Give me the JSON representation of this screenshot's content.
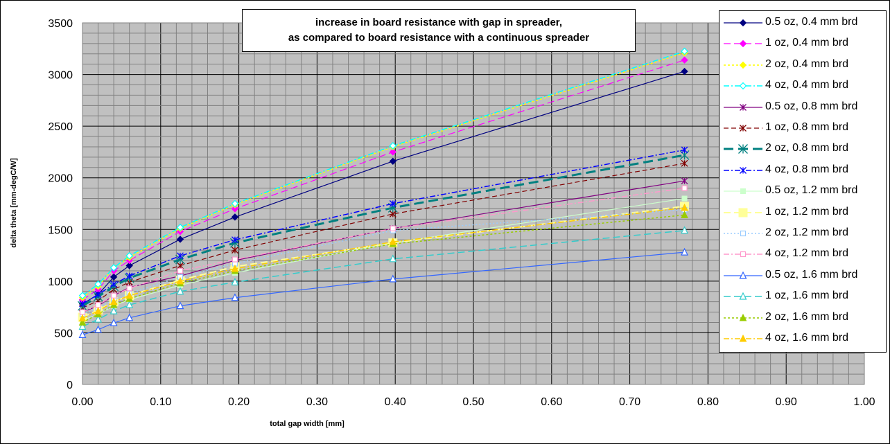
{
  "chart_data": {
    "type": "line",
    "title_lines": [
      "increase in board resistance with gap in spreader,",
      "as compared to board resistance with a continuous spreader"
    ],
    "xlabel": "total gap width [mm]",
    "ylabel": "delta theta [mm-degC/W]",
    "xlim": [
      0,
      1
    ],
    "ylim": [
      0,
      3500
    ],
    "x_ticks": [
      "0.00",
      "0.10",
      "0.20",
      "0.30",
      "0.40",
      "0.50",
      "0.60",
      "0.70",
      "0.80",
      "0.90",
      "1.00"
    ],
    "y_ticks": [
      "0",
      "500",
      "1000",
      "1500",
      "2000",
      "2500",
      "3000",
      "3500"
    ],
    "grid": true,
    "legend_position": "right",
    "x": [
      0,
      0.02,
      0.04,
      0.06,
      0.125,
      0.195,
      0.397,
      0.77
    ],
    "series": [
      {
        "name": "0.5 oz, 0.4 mm brd",
        "color": "#000080",
        "dash": "",
        "marker": "diamond",
        "width": 1.2,
        "values": [
          780,
          870,
          1040,
          1150,
          1405,
          1620,
          2160,
          3030
        ]
      },
      {
        "name": "1 oz, 0.4 mm brd",
        "color": "#ff00ff",
        "dash": "10,5",
        "marker": "diamond",
        "width": 1.2,
        "values": [
          820,
          920,
          1100,
          1200,
          1480,
          1700,
          2250,
          3140
        ]
      },
      {
        "name": "2 oz, 0.4 mm brd",
        "color": "#ffff00",
        "dash": "3,3",
        "marker": "diamond",
        "width": 1.5,
        "values": [
          840,
          950,
          1130,
          1230,
          1510,
          1740,
          2300,
          3210
        ]
      },
      {
        "name": "4 oz, 0.4 mm brd",
        "color": "#00ffff",
        "dash": "8,3,2,3",
        "marker": "diamond-open",
        "width": 1.5,
        "values": [
          860,
          970,
          1130,
          1245,
          1520,
          1750,
          2310,
          3225
        ]
      },
      {
        "name": "0.5 oz, 0.8 mm brd",
        "color": "#800080",
        "dash": "",
        "marker": "star",
        "width": 1.2,
        "values": [
          700,
          760,
          860,
          940,
          1050,
          1200,
          1510,
          1970
        ]
      },
      {
        "name": "1 oz, 0.8 mm brd",
        "color": "#800000",
        "dash": "7,4",
        "marker": "star",
        "width": 1.2,
        "values": [
          740,
          810,
          920,
          990,
          1150,
          1300,
          1650,
          2140
        ]
      },
      {
        "name": "2 oz, 0.8 mm brd",
        "color": "#008080",
        "dash": "14,7",
        "marker": "star-large",
        "width": 3,
        "values": [
          760,
          850,
          950,
          1030,
          1210,
          1370,
          1710,
          2220
        ]
      },
      {
        "name": "4 oz, 0.8 mm brd",
        "color": "#0000ff",
        "dash": "8,3,2,3",
        "marker": "star",
        "width": 1.5,
        "values": [
          780,
          870,
          970,
          1050,
          1245,
          1400,
          1750,
          2270
        ]
      },
      {
        "name": "0.5 oz, 1.2 mm brd",
        "color": "#ccffcc",
        "dash": "",
        "marker": "square-fill",
        "width": 1.2,
        "values": [
          620,
          680,
          760,
          820,
          960,
          1080,
          1370,
          1800
        ]
      },
      {
        "name": "1 oz, 1.2 mm brd",
        "color": "#ffff99",
        "dash": "10,5",
        "marker": "square-large",
        "width": 2,
        "values": [
          650,
          720,
          800,
          860,
          1010,
          1140,
          1370,
          1725
        ]
      },
      {
        "name": "2 oz, 1.2 mm brd",
        "color": "#99ccff",
        "dash": "2,3",
        "marker": "square-open",
        "width": 1.5,
        "values": [
          680,
          740,
          820,
          880,
          1040,
          1170,
          1490,
          1690
        ]
      },
      {
        "name": "4 oz, 1.2 mm brd",
        "color": "#ff99cc",
        "dash": "8,3,2,3",
        "marker": "square-open",
        "width": 1.5,
        "values": [
          700,
          770,
          860,
          930,
          1100,
          1210,
          1510,
          1900
        ]
      },
      {
        "name": "0.5 oz, 1.6 mm brd",
        "color": "#3366ff",
        "dash": "",
        "marker": "triangle-open",
        "width": 1.2,
        "values": [
          480,
          530,
          595,
          645,
          760,
          840,
          1020,
          1280
        ]
      },
      {
        "name": "1 oz, 1.6 mm brd",
        "color": "#33cccc",
        "dash": "10,5",
        "marker": "triangle-open",
        "width": 1.5,
        "values": [
          560,
          630,
          710,
          770,
          900,
          990,
          1215,
          1490
        ]
      },
      {
        "name": "2 oz, 1.6 mm brd",
        "color": "#99cc00",
        "dash": "3,3",
        "marker": "triangle-fill",
        "width": 1.5,
        "values": [
          600,
          680,
          770,
          830,
          980,
          1100,
          1360,
          1640
        ]
      },
      {
        "name": "4 oz, 1.6 mm brd",
        "color": "#ffcc00",
        "dash": "8,3,2,3",
        "marker": "triangle-fill",
        "width": 1.5,
        "values": [
          640,
          710,
          800,
          860,
          1000,
          1120,
          1380,
          1710
        ]
      }
    ]
  }
}
